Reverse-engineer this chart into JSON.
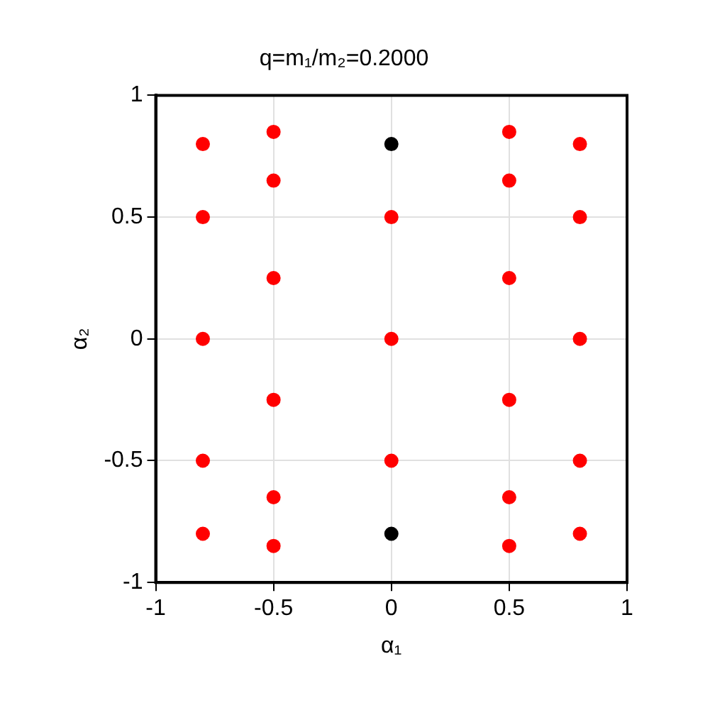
{
  "chart_data": {
    "type": "scatter",
    "title": "q=m₁/m₂=0.2000",
    "xlabel": "α₁",
    "ylabel": "α₂",
    "xlim": [
      -1,
      1
    ],
    "ylim": [
      -1,
      1
    ],
    "xticks": [
      -1,
      -0.5,
      0,
      0.5,
      1
    ],
    "yticks": [
      -1,
      -0.5,
      0,
      0.5,
      1
    ],
    "grid": true,
    "marker": "circle",
    "series": [
      {
        "color": "#ff0000",
        "x": [
          -0.8,
          -0.8,
          -0.8,
          -0.8,
          -0.8,
          -0.5,
          -0.5,
          -0.5,
          -0.5,
          -0.5,
          -0.5,
          0,
          0,
          0,
          0.5,
          0.5,
          0.5,
          0.5,
          0.5,
          0.5,
          0.8,
          0.8,
          0.8,
          0.8,
          0.8
        ],
        "values": [
          0.8,
          0.5,
          0,
          -0.5,
          -0.8,
          0.85,
          0.65,
          0.25,
          -0.25,
          -0.65,
          -0.85,
          0.5,
          0,
          -0.5,
          0.85,
          0.65,
          0.25,
          -0.25,
          -0.65,
          -0.85,
          0.8,
          0.5,
          0,
          -0.5,
          -0.8
        ]
      },
      {
        "color": "#000000",
        "x": [
          0,
          0
        ],
        "values": [
          0.8,
          -0.8
        ]
      }
    ]
  }
}
